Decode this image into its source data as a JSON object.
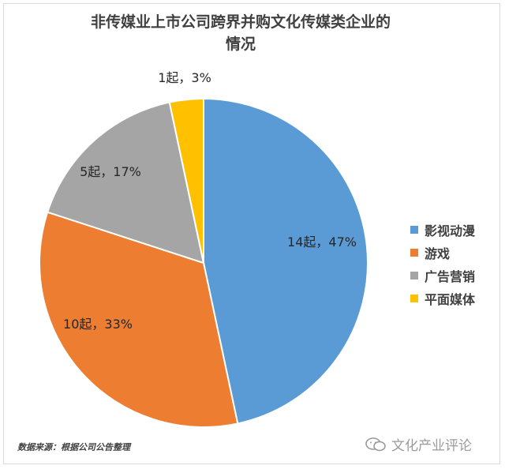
{
  "chart_data": {
    "type": "pie",
    "title": "非传媒业上市公司跨界并购文化传媒类企业的\n情况",
    "categories": [
      "影视动漫",
      "游戏",
      "广告营销",
      "平面媒体"
    ],
    "values": [
      14,
      10,
      5,
      1
    ],
    "percent_labels": [
      "47%",
      "33%",
      "17%",
      "3%"
    ],
    "data_labels": [
      "14起，47%",
      "10起，33%",
      "5起，17%",
      "1起，3%"
    ],
    "colors": [
      "#5b9bd5",
      "#ed7d31",
      "#a5a5a5",
      "#ffc000"
    ],
    "legend_position": "right"
  },
  "source_text": "数据来源：根据公司公告整理",
  "watermark_text": "文化产业评论"
}
